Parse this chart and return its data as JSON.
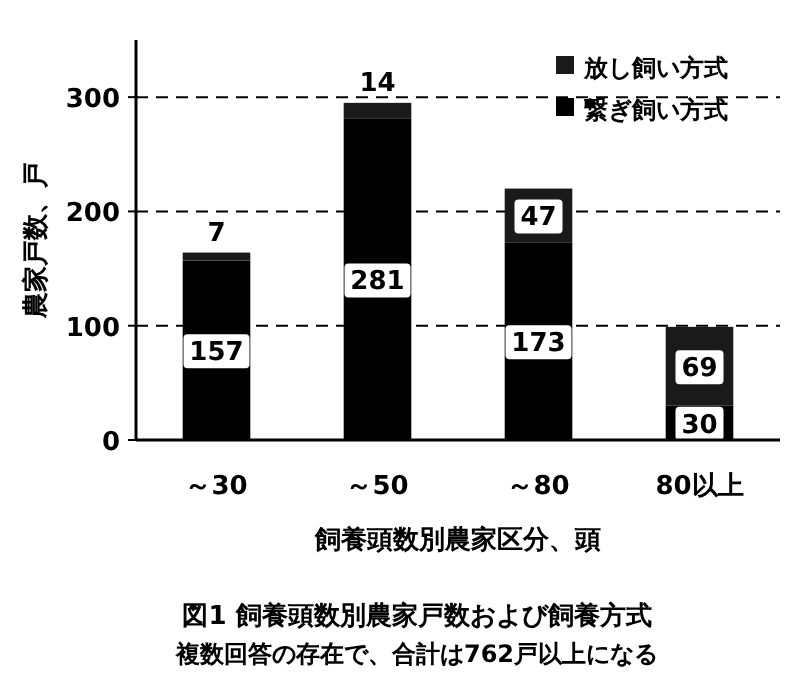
{
  "chart_data": {
    "type": "bar",
    "stacked": true,
    "title": "図1 飼養頭数別農家戸数および飼養方式",
    "subtitle": "複数回答の存在で、合計は762戸以上になる",
    "xlabel": "飼養頭数別農家区分、頭",
    "ylabel": "農家戸数、戸",
    "categories": [
      "～30",
      "～50",
      "～80",
      "80以上"
    ],
    "series": [
      {
        "name": "繋ぎ飼い方式",
        "color": "#000000",
        "values": [
          157,
          281,
          173,
          30
        ]
      },
      {
        "name": "放し飼い方式",
        "color": "#1a1a1a",
        "values": [
          7,
          14,
          47,
          69
        ]
      }
    ],
    "ylim": [
      0,
      350
    ],
    "yticks": [
      0,
      100,
      200,
      300
    ],
    "grid": "y",
    "legend": "top right",
    "data_labels": true
  }
}
